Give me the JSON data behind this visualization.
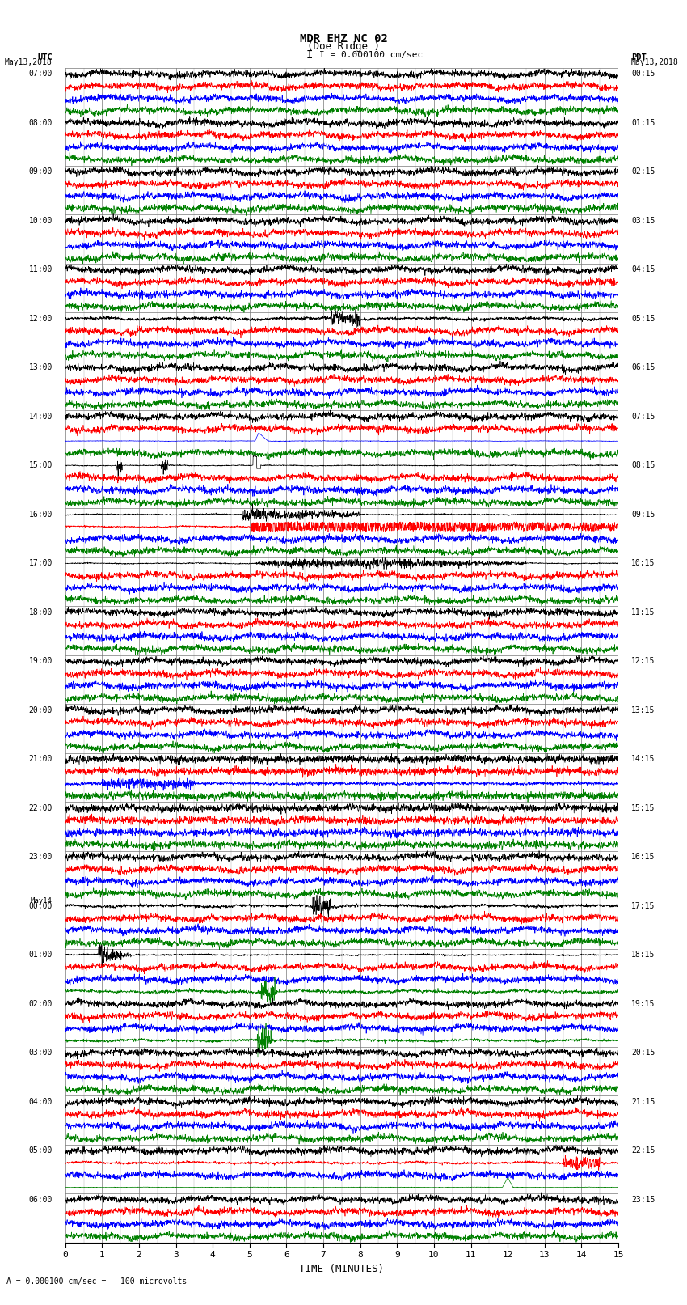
{
  "title_line1": "MDR EHZ NC 02",
  "title_line2": "(Doe Ridge )",
  "title_line3": "I = 0.000100 cm/sec",
  "left_label_top": "UTC",
  "left_label_date": "May13,2018",
  "right_label_top": "PDT",
  "right_label_date": "May13,2018",
  "bottom_label": "TIME (MINUTES)",
  "scale_label": "= 0.000100 cm/sec =   100 microvolts",
  "utc_times": [
    "07:00",
    "08:00",
    "09:00",
    "10:00",
    "11:00",
    "12:00",
    "13:00",
    "14:00",
    "15:00",
    "16:00",
    "17:00",
    "18:00",
    "19:00",
    "20:00",
    "21:00",
    "22:00",
    "23:00",
    "00:00",
    "01:00",
    "02:00",
    "03:00",
    "04:00",
    "05:00",
    "06:00"
  ],
  "utc_extra": [
    16,
    17
  ],
  "pdt_times": [
    "00:15",
    "01:15",
    "02:15",
    "03:15",
    "04:15",
    "05:15",
    "06:15",
    "07:15",
    "08:15",
    "09:15",
    "10:15",
    "11:15",
    "12:15",
    "13:15",
    "14:15",
    "15:15",
    "16:15",
    "17:15",
    "18:15",
    "19:15",
    "20:15",
    "21:15",
    "22:15",
    "23:15"
  ],
  "n_rows": 24,
  "traces_per_row": 4,
  "trace_colors": [
    "black",
    "red",
    "blue",
    "green"
  ],
  "bg_color": "white",
  "grid_color": "#777777",
  "line_width": 0.5,
  "fig_width": 8.5,
  "fig_height": 16.13,
  "dpi": 100,
  "seed": 12345,
  "base_noise": 0.12,
  "noise_freqs": [
    3,
    7,
    15,
    30,
    60
  ],
  "noise_amps": [
    0.04,
    0.03,
    0.02,
    0.015,
    0.01
  ]
}
